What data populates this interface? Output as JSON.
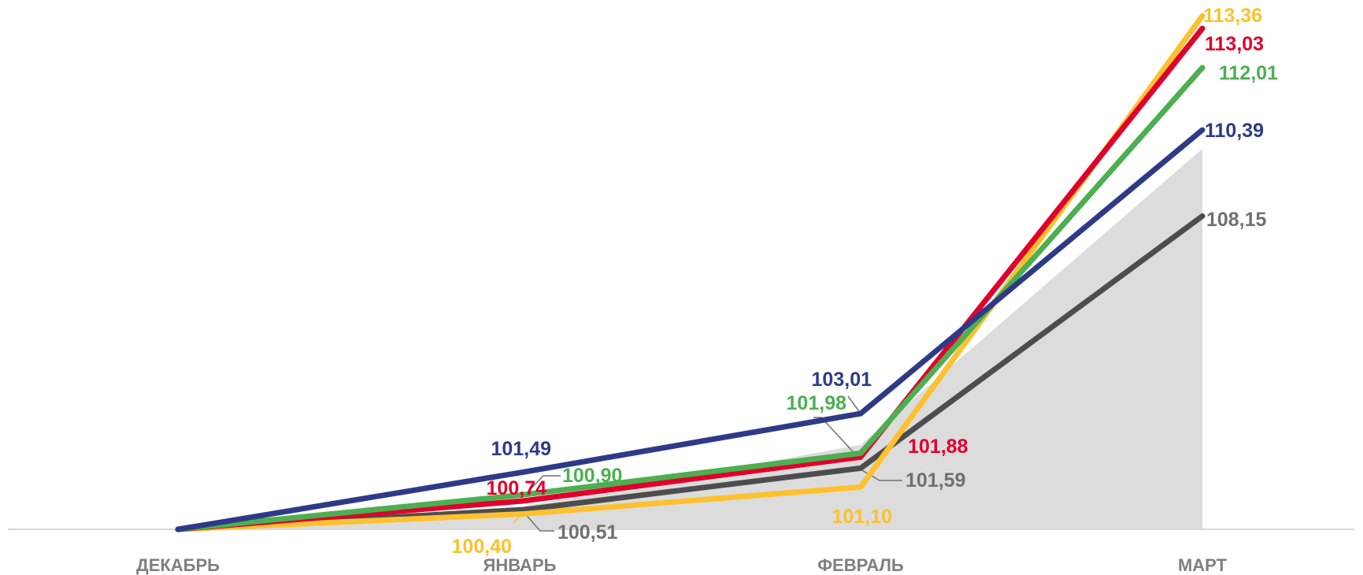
{
  "chart_data": {
    "type": "line",
    "title": "",
    "xlabel": "",
    "ylabel": "",
    "categories": [
      "ДЕКАБРЬ",
      "ЯНВАРЬ",
      "ФЕВРАЛЬ",
      "МАРТ"
    ],
    "ylim": [
      100,
      113.36
    ],
    "grid": false,
    "legend": "none",
    "area": {
      "color": "#dcdcdc",
      "values": [
        100,
        100.6,
        102.2,
        109.9
      ]
    },
    "series": [
      {
        "color": "#4d4d4d",
        "values": [
          100,
          100.51,
          101.59,
          108.15
        ],
        "labels": [
          "",
          "100,51",
          "101,59",
          "108,15"
        ],
        "label_color": "#707070"
      },
      {
        "color": "#fdc12e",
        "values": [
          100,
          100.4,
          101.1,
          113.36
        ],
        "labels": [
          "",
          "100,40",
          "101,10",
          "113,36"
        ],
        "label_color": "#fdc12e"
      },
      {
        "color": "#e0002b",
        "values": [
          100,
          100.74,
          101.88,
          113.03
        ],
        "labels": [
          "",
          "100,74",
          "101,88",
          "113,03"
        ],
        "label_color": "#e0002b"
      },
      {
        "color": "#4caf50",
        "values": [
          100,
          100.9,
          101.98,
          112.01
        ],
        "labels": [
          "",
          "100,90",
          "101,98",
          "112,01"
        ],
        "label_color": "#4caf50"
      },
      {
        "color": "#2e3a87",
        "values": [
          100,
          101.49,
          103.01,
          110.39
        ],
        "labels": [
          "",
          "101,49",
          "103,01",
          "110,39"
        ],
        "label_color": "#2e3a87"
      }
    ]
  }
}
